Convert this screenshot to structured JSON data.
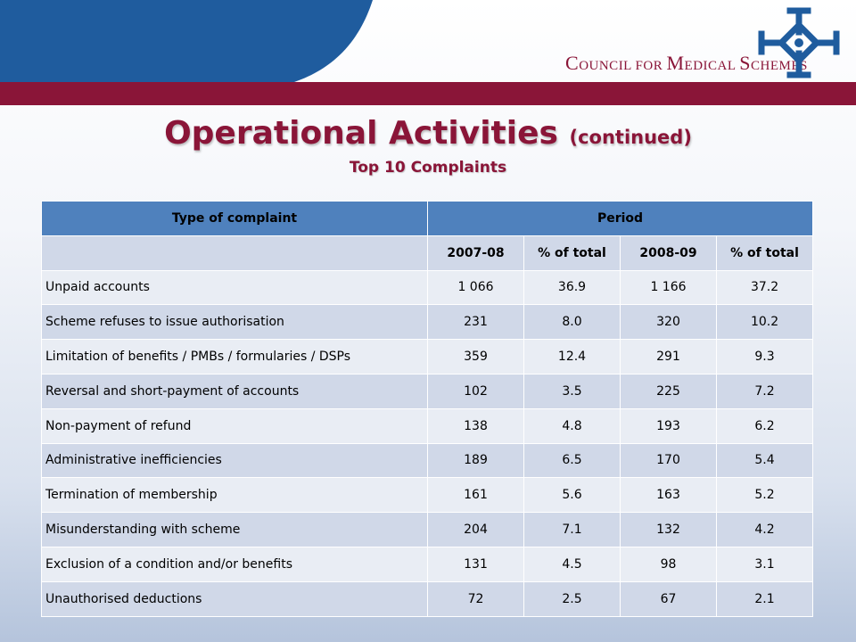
{
  "header": {
    "logo_text_parts": [
      {
        "big": "C",
        "small": "OUNCIL FOR "
      },
      {
        "big": "M",
        "small": "EDICAL "
      },
      {
        "big": "S",
        "small": "CHEMES"
      }
    ],
    "colors": {
      "brand_maroon": "#8a1538",
      "brand_blue": "#1f5c9e",
      "table_header": "#4f81bd"
    }
  },
  "title": {
    "main": "Operational Activities",
    "continued": "(continued)",
    "subtitle": "Top 10 Complaints"
  },
  "table": {
    "header": {
      "type": "Type of complaint",
      "period": "Period"
    },
    "subheader": [
      "2007-08",
      "% of total",
      "2008-09",
      "% of total"
    ],
    "rows": [
      {
        "type": "Unpaid accounts",
        "y1": "1 066",
        "p1": "36.9",
        "y2": "1 166",
        "p2": "37.2"
      },
      {
        "type": "Scheme refuses to issue authorisation",
        "y1": "231",
        "p1": "8.0",
        "y2": "320",
        "p2": "10.2"
      },
      {
        "type": "Limitation of benefits / PMBs / formularies / DSPs",
        "y1": "359",
        "p1": "12.4",
        "y2": "291",
        "p2": "9.3"
      },
      {
        "type": "Reversal and short-payment of accounts",
        "y1": "102",
        "p1": "3.5",
        "y2": "225",
        "p2": "7.2"
      },
      {
        "type": "Non-payment of refund",
        "y1": "138",
        "p1": "4.8",
        "y2": "193",
        "p2": "6.2"
      },
      {
        "type": "Administrative inefficiencies",
        "y1": "189",
        "p1": "6.5",
        "y2": "170",
        "p2": "5.4"
      },
      {
        "type": "Termination of membership",
        "y1": "161",
        "p1": "5.6",
        "y2": "163",
        "p2": "5.2"
      },
      {
        "type": "Misunderstanding with scheme",
        "y1": "204",
        "p1": "7.1",
        "y2": "132",
        "p2": "4.2"
      },
      {
        "type": "Exclusion of a condition and/or benefits",
        "y1": "131",
        "p1": "4.5",
        "y2": "98",
        "p2": "3.1"
      },
      {
        "type": "Unauthorised deductions",
        "y1": "72",
        "p1": "2.5",
        "y2": "67",
        "p2": "2.1"
      }
    ]
  }
}
